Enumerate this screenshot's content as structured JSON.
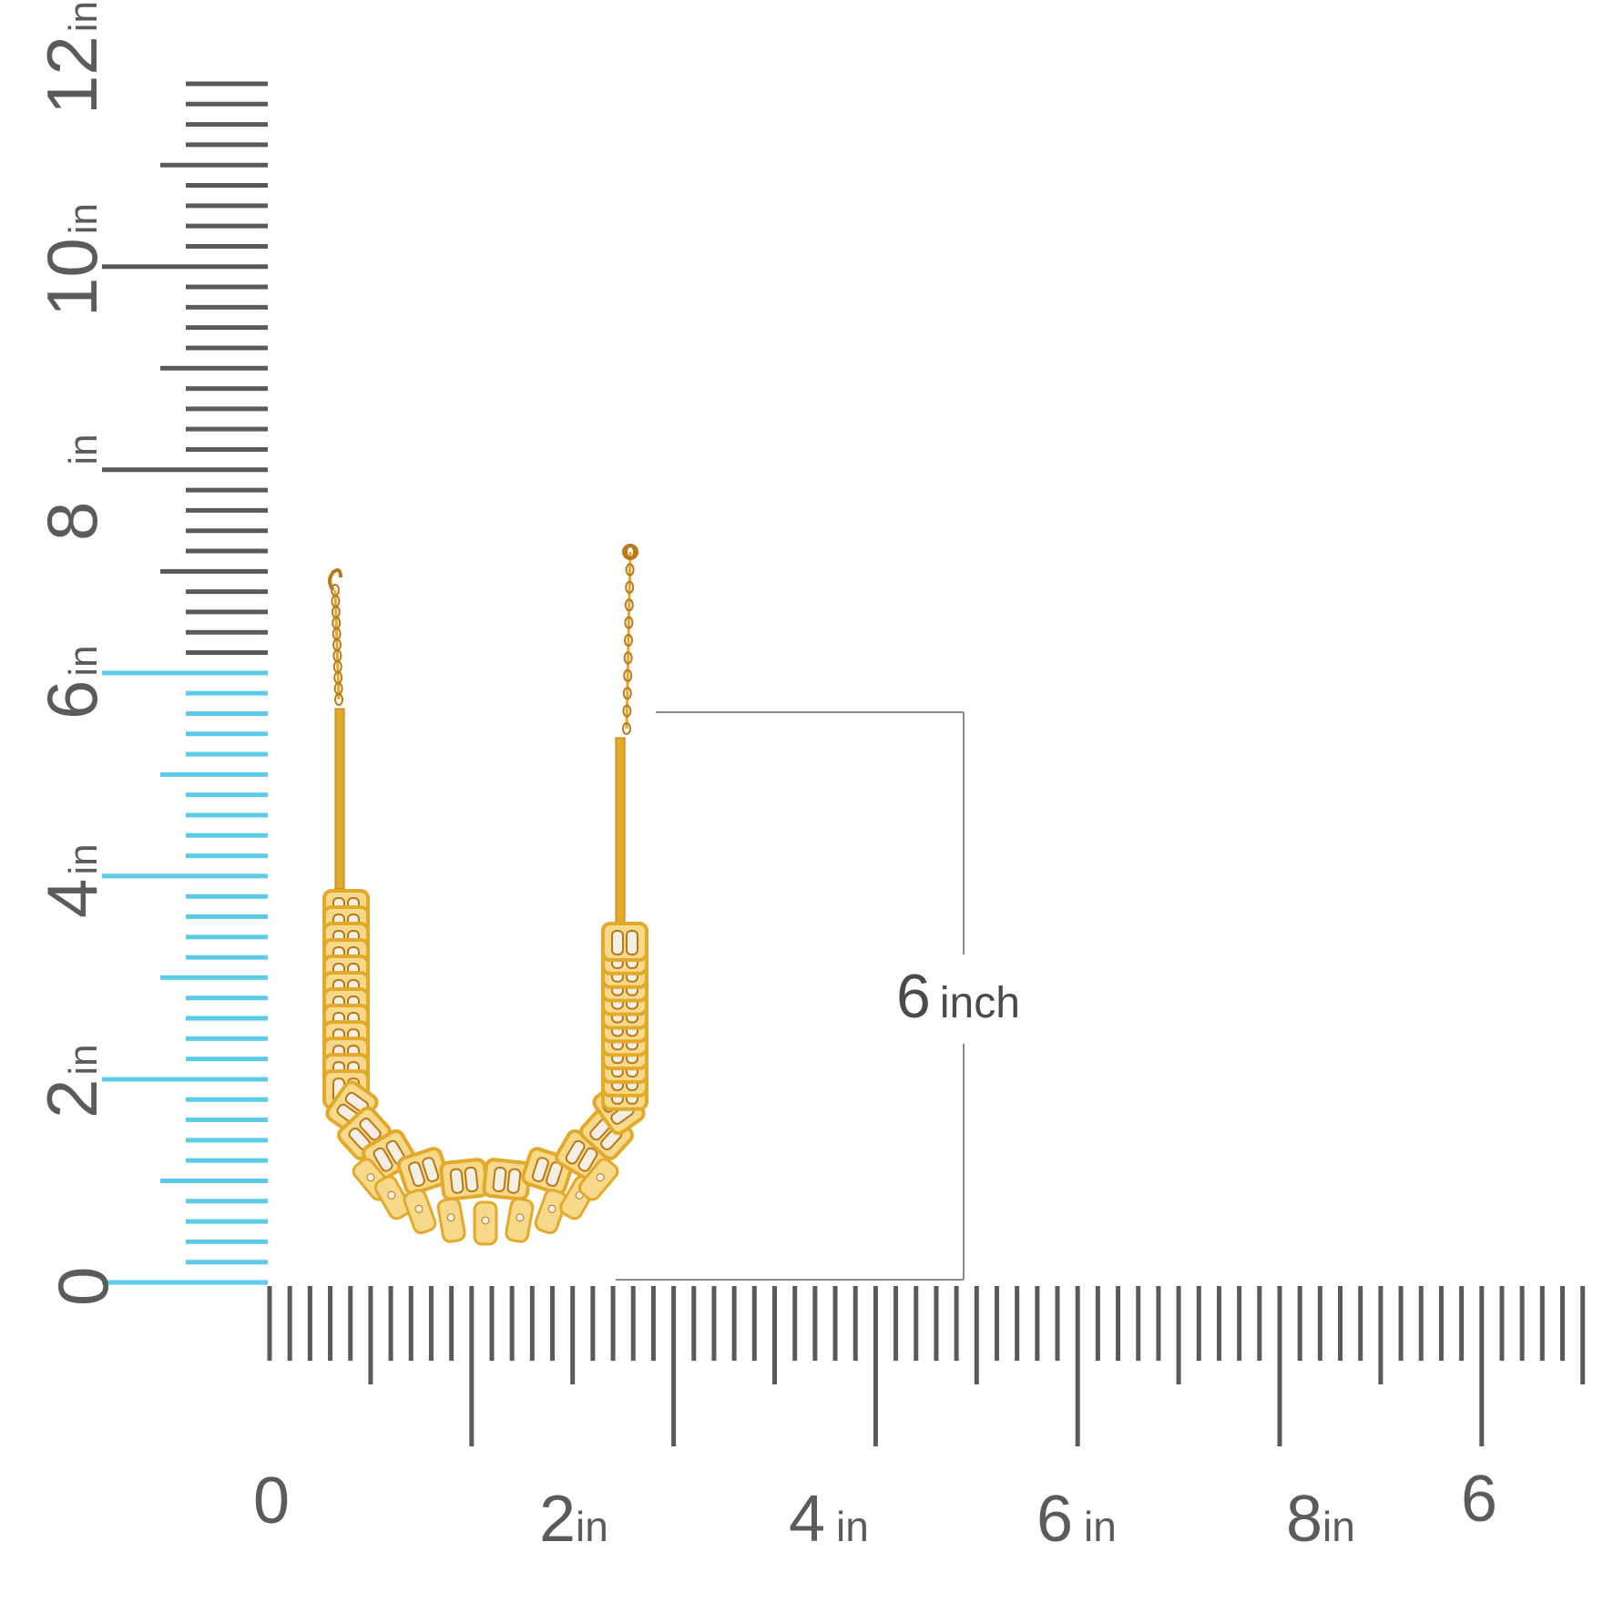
{
  "colors": {
    "tick_dark": "#5a5a5a",
    "tick_highlight": "#5bcbe8",
    "label": "#5b5b5b",
    "dimension_line": "#8a8a8a",
    "gold": "#e3a92a",
    "gold_dark": "#b9791a",
    "gold_light": "#f6d98a",
    "stone": "#f4efe4"
  },
  "vertical_ruler": {
    "labels": [
      {
        "number": "0",
        "unit": ""
      },
      {
        "number": "2",
        "unit": "in"
      },
      {
        "number": "4",
        "unit": "in"
      },
      {
        "number": "6",
        "unit": "in"
      },
      {
        "number": "8",
        "unit": "in"
      },
      {
        "number": "10",
        "unit": "in"
      },
      {
        "number": "12",
        "unit": "in"
      }
    ],
    "highlighted_range_in": [
      0,
      6
    ]
  },
  "horizontal_ruler": {
    "labels": [
      {
        "number": "0",
        "unit": ""
      },
      {
        "number": "2",
        "unit": "in"
      },
      {
        "number": "4",
        "unit": "in"
      },
      {
        "number": "6",
        "unit": "in"
      },
      {
        "number": "8",
        "unit": "in"
      },
      {
        "number": "6",
        "unit": ""
      }
    ]
  },
  "dimension": {
    "value": "6",
    "unit": "inch"
  },
  "product": {
    "icon": "gold-necklace-image"
  }
}
